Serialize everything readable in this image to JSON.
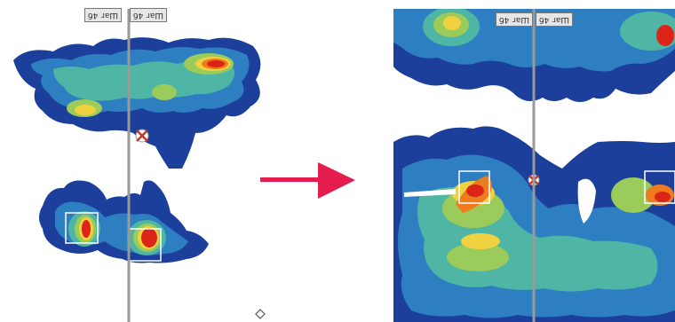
{
  "left": {
    "label_a": "Шаг 4б",
    "label_b": "Шаг 4б"
  },
  "right": {
    "label_a": "Шаг 4б",
    "label_b": "Шаг 4б"
  },
  "colors": {
    "heat_low": "#1b3f9a",
    "heat_mid": "#2e7fc2",
    "heat_teal": "#4fb5a4",
    "heat_green": "#9acb5b",
    "heat_yellow": "#f0d240",
    "heat_orange": "#ee7b1e",
    "heat_high": "#dd2418",
    "arrow": "#e51d4f"
  }
}
